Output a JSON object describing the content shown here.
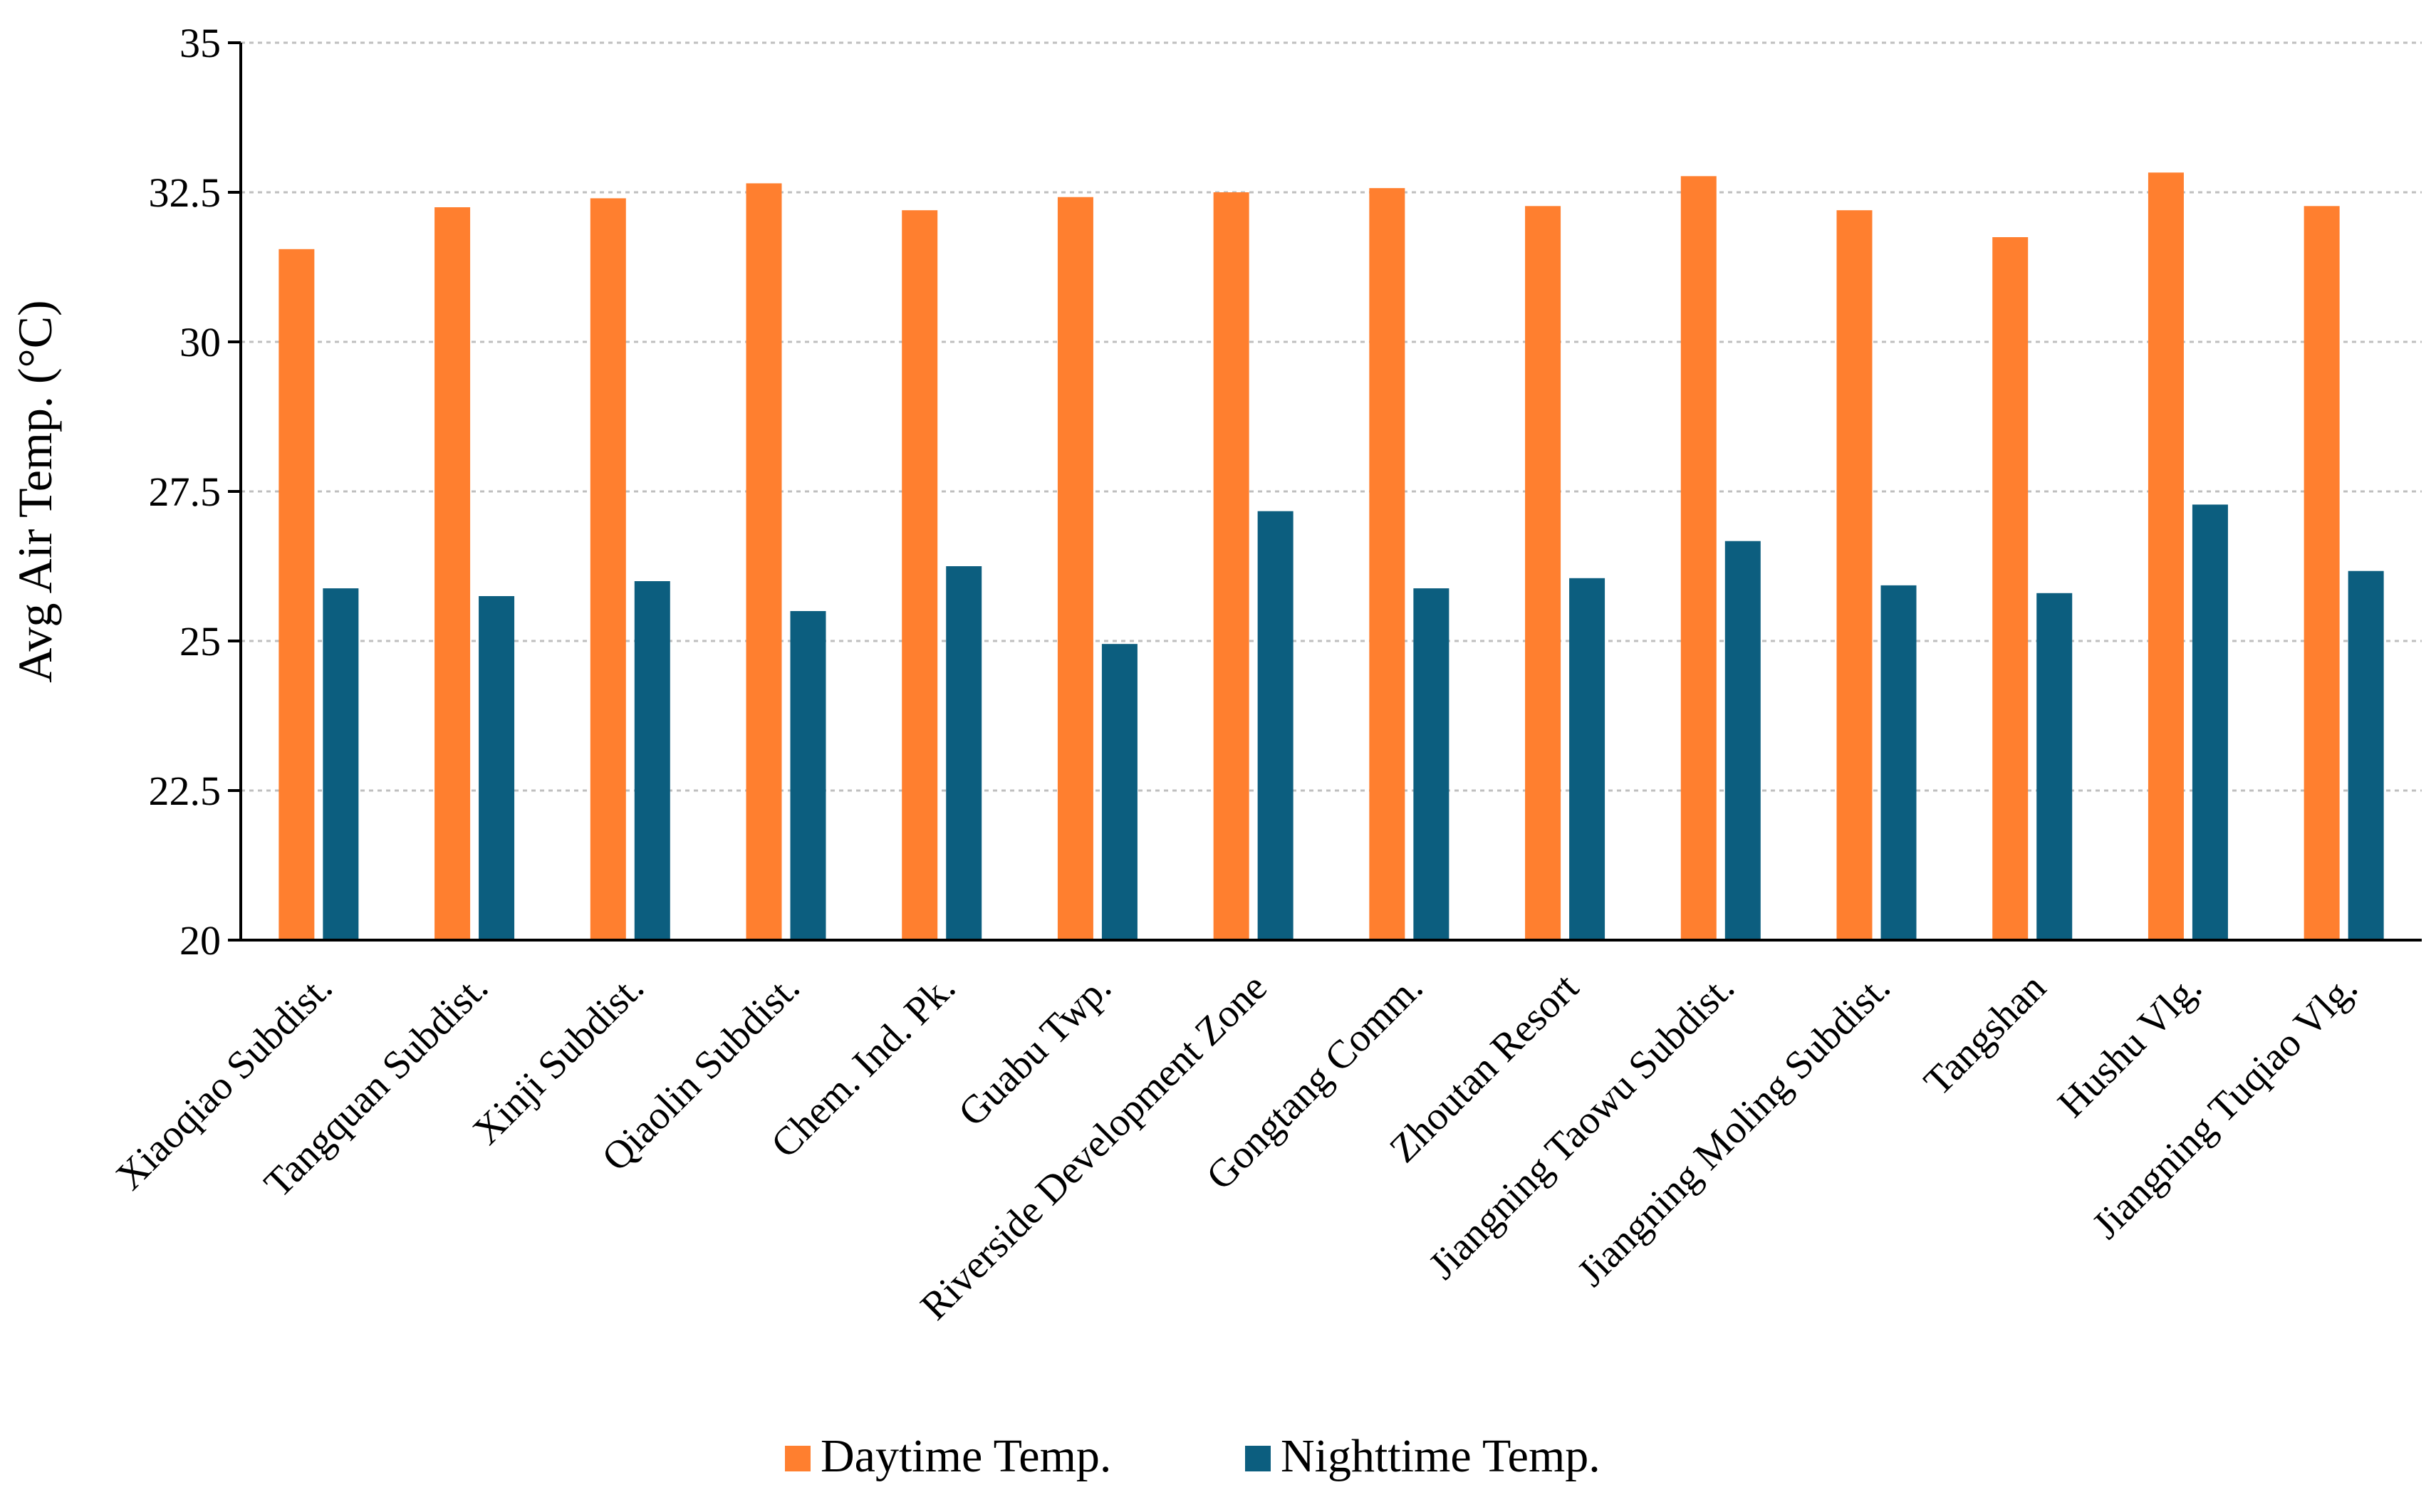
{
  "chart_data": {
    "type": "bar",
    "title": "",
    "xlabel": "",
    "ylabel": "Avg Air Temp. (°C)",
    "ylim": [
      20,
      35
    ],
    "yticks": [
      20,
      22.5,
      25,
      27.5,
      30,
      32.5,
      35
    ],
    "ytick_labels": [
      "20",
      "22.5",
      "25",
      "27.5",
      "30",
      "32.5",
      "35"
    ],
    "grid": true,
    "legend_position": "bottom",
    "categories": [
      "Xiaoqiao Subdist.",
      "Tangquan Subdist.",
      "Xinji Subdist.",
      "Qiaolin Subdist.",
      "Chem. Ind. Pk.",
      "Guabu Twp.",
      "Riverside Development Zone",
      "Gongtang Comm.",
      "Zhoutan Resort",
      "Jiangning Taowu Subdist.",
      "Jiangning Moling Subdist.",
      "Tangshan",
      "Hushu Vlg.",
      "Jiangning Tuqiao Vlg."
    ],
    "series": [
      {
        "name": "Daytime Temp.",
        "color": "#FF7F2F",
        "values": [
          31.55,
          32.25,
          32.4,
          32.65,
          32.2,
          32.42,
          32.5,
          32.57,
          32.27,
          32.77,
          32.2,
          31.75,
          32.83,
          32.27
        ]
      },
      {
        "name": "Nighttime Temp.",
        "color": "#0C5E7F",
        "values": [
          25.88,
          25.75,
          26.0,
          25.5,
          26.25,
          24.95,
          27.17,
          25.88,
          26.05,
          26.67,
          25.93,
          25.8,
          27.28,
          26.17
        ]
      }
    ]
  }
}
